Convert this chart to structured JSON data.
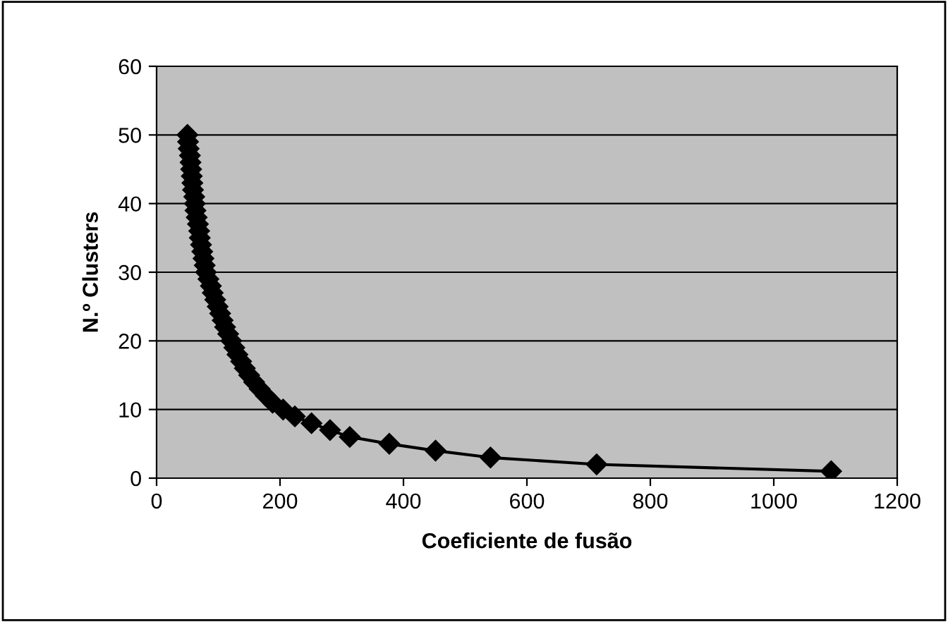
{
  "chart_data": {
    "type": "line",
    "xlabel": "Coeficiente de fusão",
    "ylabel": "N.º Clusters",
    "x": [
      50,
      51,
      52,
      54,
      55,
      56,
      57,
      58,
      59,
      61,
      62,
      63,
      65,
      67,
      69,
      70,
      72,
      74,
      76,
      78,
      80,
      84,
      88,
      91,
      95,
      99,
      103,
      107,
      111,
      116,
      121,
      126,
      131,
      137,
      143,
      150,
      158,
      167,
      177,
      188,
      205,
      224,
      251,
      281,
      313,
      377,
      452,
      541,
      713,
      1093
    ],
    "series": [
      {
        "color": "#000000",
        "values": [
          50,
          49,
          48,
          47,
          46,
          45,
          44,
          43,
          42,
          41,
          40,
          39,
          38,
          37,
          36,
          35,
          34,
          33,
          32,
          31,
          30,
          29,
          28,
          27,
          26,
          25,
          24,
          23,
          22,
          21,
          20,
          19,
          18,
          17,
          16,
          15,
          14,
          13,
          12,
          11,
          10,
          9,
          8,
          7,
          6,
          5,
          4,
          3,
          2,
          1
        ]
      }
    ],
    "xlim": [
      0,
      1200
    ],
    "xticks": [
      0,
      200,
      400,
      600,
      800,
      1000,
      1200
    ],
    "ylim": [
      0,
      60
    ],
    "yticks": [
      0,
      10,
      20,
      30,
      40,
      50,
      60
    ],
    "grid": "y",
    "marker": "diamond",
    "line_style": "solid",
    "legend": false
  }
}
